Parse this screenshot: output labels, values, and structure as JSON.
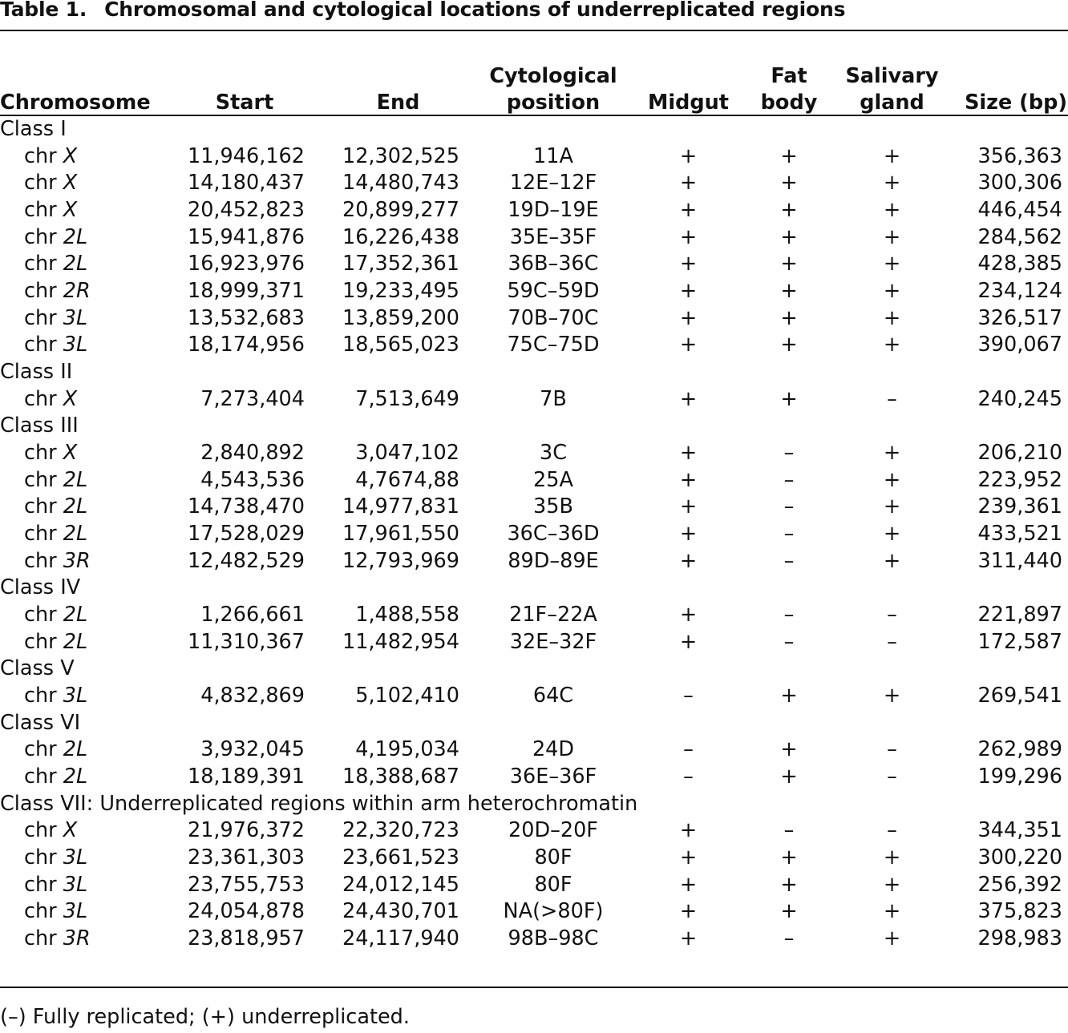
{
  "title": {
    "label": "Table 1.",
    "text": "Chromosomal and cytological locations of underreplicated regions"
  },
  "headers": {
    "chromosome": "Chromosome",
    "start": "Start",
    "end": "End",
    "cytological": [
      "Cytological",
      "position"
    ],
    "midgut": "Midgut",
    "fat_body": [
      "Fat",
      "body"
    ],
    "salivary_gland": [
      "Salivary",
      "gland"
    ],
    "size": "Size (bp)"
  },
  "chr_prefix": "chr",
  "groups": [
    {
      "label": "Class I",
      "rows": [
        {
          "arm": "X",
          "start": "11,946,162",
          "end": "12,302,525",
          "cyto": "11A",
          "midgut": "+",
          "fat": "+",
          "sal": "+",
          "size": "356,363"
        },
        {
          "arm": "X",
          "start": "14,180,437",
          "end": "14,480,743",
          "cyto": "12E–12F",
          "midgut": "+",
          "fat": "+",
          "sal": "+",
          "size": "300,306"
        },
        {
          "arm": "X",
          "start": "20,452,823",
          "end": "20,899,277",
          "cyto": "19D–19E",
          "midgut": "+",
          "fat": "+",
          "sal": "+",
          "size": "446,454"
        },
        {
          "arm": "2L",
          "start": "15,941,876",
          "end": "16,226,438",
          "cyto": "35E–35F",
          "midgut": "+",
          "fat": "+",
          "sal": "+",
          "size": "284,562"
        },
        {
          "arm": "2L",
          "start": "16,923,976",
          "end": "17,352,361",
          "cyto": "36B–36C",
          "midgut": "+",
          "fat": "+",
          "sal": "+",
          "size": "428,385"
        },
        {
          "arm": "2R",
          "start": "18,999,371",
          "end": "19,233,495",
          "cyto": "59C–59D",
          "midgut": "+",
          "fat": "+",
          "sal": "+",
          "size": "234,124"
        },
        {
          "arm": "3L",
          "start": "13,532,683",
          "end": "13,859,200",
          "cyto": "70B–70C",
          "midgut": "+",
          "fat": "+",
          "sal": "+",
          "size": "326,517"
        },
        {
          "arm": "3L",
          "start": "18,174,956",
          "end": "18,565,023",
          "cyto": "75C–75D",
          "midgut": "+",
          "fat": "+",
          "sal": "+",
          "size": "390,067"
        }
      ]
    },
    {
      "label": "Class II",
      "rows": [
        {
          "arm": "X",
          "start": "7,273,404",
          "end": "7,513,649",
          "cyto": "7B",
          "midgut": "+",
          "fat": "+",
          "sal": "–",
          "size": "240,245"
        }
      ]
    },
    {
      "label": "Class III",
      "rows": [
        {
          "arm": "X",
          "start": "2,840,892",
          "end": "3,047,102",
          "cyto": "3C",
          "midgut": "+",
          "fat": "–",
          "sal": "+",
          "size": "206,210"
        },
        {
          "arm": "2L",
          "start": "4,543,536",
          "end": "4,7674,88",
          "cyto": "25A",
          "midgut": "+",
          "fat": "–",
          "sal": "+",
          "size": "223,952"
        },
        {
          "arm": "2L",
          "start": "14,738,470",
          "end": "14,977,831",
          "cyto": "35B",
          "midgut": "+",
          "fat": "–",
          "sal": "+",
          "size": "239,361"
        },
        {
          "arm": "2L",
          "start": "17,528,029",
          "end": "17,961,550",
          "cyto": "36C–36D",
          "midgut": "+",
          "fat": "–",
          "sal": "+",
          "size": "433,521"
        },
        {
          "arm": "3R",
          "start": "12,482,529",
          "end": "12,793,969",
          "cyto": "89D–89E",
          "midgut": "+",
          "fat": "–",
          "sal": "+",
          "size": "311,440"
        }
      ]
    },
    {
      "label": "Class IV",
      "rows": [
        {
          "arm": "2L",
          "start": "1,266,661",
          "end": "1,488,558",
          "cyto": "21F–22A",
          "midgut": "+",
          "fat": "–",
          "sal": "–",
          "size": "221,897"
        },
        {
          "arm": "2L",
          "start": "11,310,367",
          "end": "11,482,954",
          "cyto": "32E–32F",
          "midgut": "+",
          "fat": "–",
          "sal": "–",
          "size": "172,587"
        }
      ]
    },
    {
      "label": "Class V",
      "rows": [
        {
          "arm": "3L",
          "start": "4,832,869",
          "end": "5,102,410",
          "cyto": "64C",
          "midgut": "–",
          "fat": "+",
          "sal": "+",
          "size": "269,541"
        }
      ]
    },
    {
      "label": "Class VI",
      "rows": [
        {
          "arm": "2L",
          "start": "3,932,045",
          "end": "4,195,034",
          "cyto": "24D",
          "midgut": "–",
          "fat": "+",
          "sal": "–",
          "size": "262,989"
        },
        {
          "arm": "2L",
          "start": "18,189,391",
          "end": "18,388,687",
          "cyto": "36E–36F",
          "midgut": "–",
          "fat": "+",
          "sal": "–",
          "size": "199,296"
        }
      ]
    },
    {
      "label": "Class VII: Underreplicated regions within arm heterochromatin",
      "rows": [
        {
          "arm": "X",
          "start": "21,976,372",
          "end": "22,320,723",
          "cyto": "20D–20F",
          "midgut": "+",
          "fat": "–",
          "sal": "–",
          "size": "344,351"
        },
        {
          "arm": "3L",
          "start": "23,361,303",
          "end": "23,661,523",
          "cyto": "80F",
          "midgut": "+",
          "fat": "+",
          "sal": "+",
          "size": "300,220"
        },
        {
          "arm": "3L",
          "start": "23,755,753",
          "end": "24,012,145",
          "cyto": "80F",
          "midgut": "+",
          "fat": "+",
          "sal": "+",
          "size": "256,392"
        },
        {
          "arm": "3L",
          "start": "24,054,878",
          "end": "24,430,701",
          "cyto": "NA(>80F)",
          "midgut": "+",
          "fat": "+",
          "sal": "+",
          "size": "375,823"
        },
        {
          "arm": "3R",
          "start": "23,818,957",
          "end": "24,117,940",
          "cyto": "98B–98C",
          "midgut": "+",
          "fat": "–",
          "sal": "+",
          "size": "298,983"
        }
      ]
    }
  ],
  "footnote": "(–) Fully replicated; (+) underreplicated."
}
